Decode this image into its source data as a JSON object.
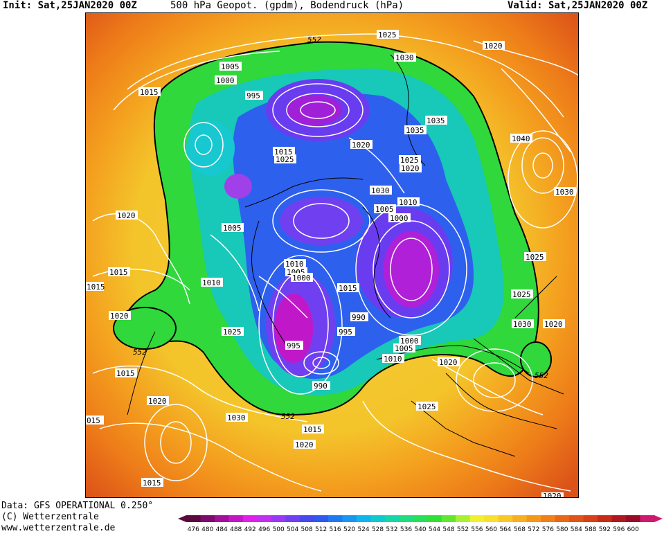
{
  "header": {
    "init_label": "Init: Sat,25JAN2020 00Z",
    "title": "500 hPa Geopot. (gpdm), Bodendruck (hPa)",
    "valid_label": "Valid: Sat,25JAN2020 00Z"
  },
  "credits": {
    "data_source": "Data: GFS OPERATIONAL 0.250°",
    "copyright": "(C) Wetterzentrale",
    "url": "www.wetterzentrale.de"
  },
  "map": {
    "region": "Northern Hemisphere polar stereographic",
    "geopotential_contour_label": "552",
    "pressure_labels": [
      {
        "text": "1025",
        "id": "p1"
      },
      {
        "text": "1030",
        "id": "p2"
      },
      {
        "text": "1020",
        "id": "p3"
      },
      {
        "text": "1005",
        "id": "p4"
      },
      {
        "text": "1000",
        "id": "p5"
      },
      {
        "text": "995",
        "id": "p6"
      },
      {
        "text": "1015",
        "id": "p7"
      },
      {
        "text": "1035",
        "id": "p8"
      },
      {
        "text": "1035",
        "id": "p9"
      },
      {
        "text": "1040",
        "id": "p10"
      },
      {
        "text": "1020",
        "id": "p11"
      },
      {
        "text": "1025",
        "id": "p12"
      },
      {
        "text": "1020",
        "id": "p13"
      },
      {
        "text": "1015",
        "id": "p14"
      },
      {
        "text": "1025",
        "id": "p15"
      },
      {
        "text": "1030",
        "id": "p16"
      },
      {
        "text": "1010",
        "id": "p17"
      },
      {
        "text": "1005",
        "id": "p18"
      },
      {
        "text": "1000",
        "id": "p19"
      },
      {
        "text": "1020",
        "id": "p20"
      },
      {
        "text": "1005",
        "id": "p21"
      },
      {
        "text": "1030",
        "id": "p22"
      },
      {
        "text": "1025",
        "id": "p23"
      },
      {
        "text": "1015",
        "id": "p24"
      },
      {
        "text": "1010",
        "id": "p25"
      },
      {
        "text": "1010",
        "id": "p26"
      },
      {
        "text": "1005",
        "id": "p27"
      },
      {
        "text": "1000",
        "id": "p28"
      },
      {
        "text": "1015",
        "id": "p29"
      },
      {
        "text": "990",
        "id": "p30"
      },
      {
        "text": "995",
        "id": "p31"
      },
      {
        "text": "1025",
        "id": "p32"
      },
      {
        "text": "1025",
        "id": "p33"
      },
      {
        "text": "1030",
        "id": "p34"
      },
      {
        "text": "1020",
        "id": "p35"
      },
      {
        "text": "1020",
        "id": "p36"
      },
      {
        "text": "995",
        "id": "p37"
      },
      {
        "text": "1000",
        "id": "p38"
      },
      {
        "text": "1005",
        "id": "p39"
      },
      {
        "text": "1010",
        "id": "p40"
      },
      {
        "text": "1020",
        "id": "p41"
      },
      {
        "text": "990",
        "id": "p42"
      },
      {
        "text": "1015",
        "id": "p43"
      },
      {
        "text": "1020",
        "id": "p44"
      },
      {
        "text": "1025",
        "id": "p45"
      },
      {
        "text": "1020",
        "id": "p46"
      },
      {
        "text": "1030",
        "id": "p47"
      },
      {
        "text": "1015",
        "id": "p48"
      },
      {
        "text": "1020",
        "id": "p49"
      },
      {
        "text": "1015",
        "id": "p50"
      },
      {
        "text": "1020",
        "id": "p51"
      },
      {
        "text": "1015",
        "id": "p52"
      },
      {
        "text": "015",
        "id": "p53"
      },
      {
        "text": "015",
        "id": "p54"
      },
      {
        "text": "1030",
        "id": "p55"
      },
      {
        "text": "1020",
        "id": "p56"
      },
      {
        "text": "552",
        "id": "p57"
      },
      {
        "text": "552",
        "id": "p58"
      },
      {
        "text": "552",
        "id": "p59"
      },
      {
        "text": "552",
        "id": "p60"
      }
    ]
  },
  "colorbar": {
    "ticks": [
      "476",
      "480",
      "484",
      "488",
      "492",
      "496",
      "500",
      "504",
      "508",
      "512",
      "516",
      "520",
      "524",
      "528",
      "532",
      "536",
      "540",
      "544",
      "548",
      "552",
      "556",
      "560",
      "564",
      "568",
      "572",
      "576",
      "580",
      "584",
      "588",
      "592",
      "596",
      "600"
    ],
    "colors": [
      "#5a0a3c",
      "#7d0b6e",
      "#a0109c",
      "#c218c4",
      "#e020e8",
      "#c030f0",
      "#9a38f4",
      "#7040f0",
      "#4848f0",
      "#3058f0",
      "#2078f0",
      "#1896f0",
      "#10b4ec",
      "#10c8d0",
      "#18d4a8",
      "#20dc80",
      "#28e058",
      "#30e038",
      "#60e830",
      "#a8f030",
      "#f0f030",
      "#f8e030",
      "#f8c828",
      "#f8b020",
      "#f49818",
      "#f08018",
      "#e86818",
      "#e05418",
      "#d84018",
      "#c82c18",
      "#b01820",
      "#980c28",
      "#d01870"
    ]
  }
}
